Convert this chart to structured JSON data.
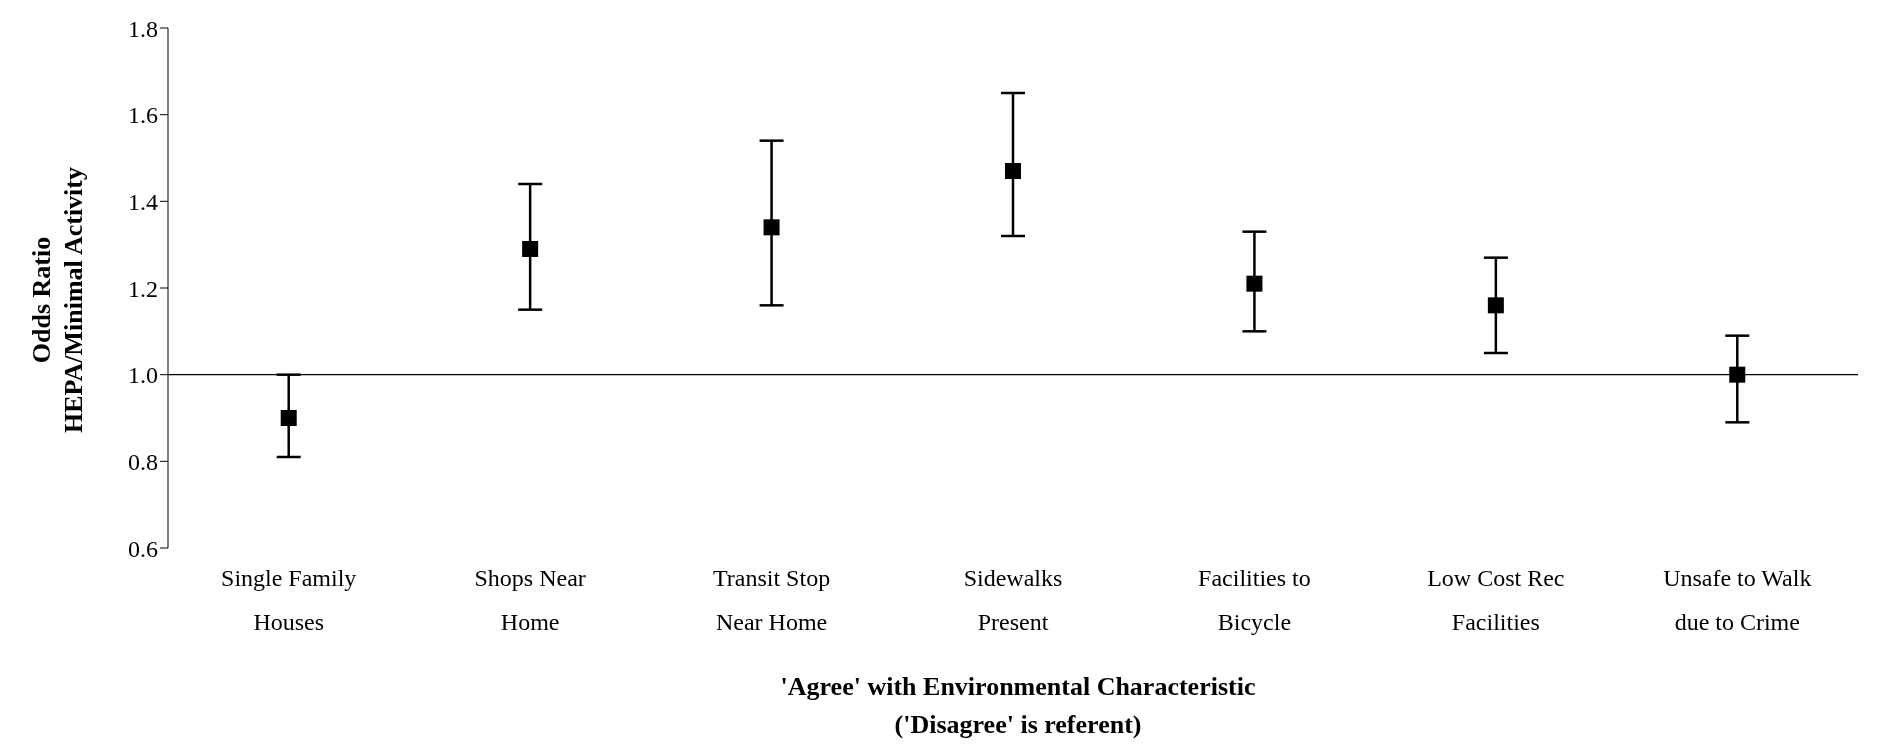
{
  "chart_data": {
    "type": "scatter",
    "xlabel": "'Agree' with Environmental Characteristic\n('Disagree' is referent)",
    "ylabel": "Odds Ratio\nHEPA/Minimal Activity",
    "categories": [
      "Single Family Houses",
      "Shops Near Home",
      "Transit Stop Near Home",
      "Sidewalks Present",
      "Facilities to Bicycle",
      "Low Cost Rec Facilities",
      "Unsafe to Walk due to Crime"
    ],
    "values": [
      0.9,
      1.29,
      1.34,
      1.47,
      1.21,
      1.16,
      1.0
    ],
    "errors": [
      [
        0.81,
        1.0
      ],
      [
        1.15,
        1.44
      ],
      [
        1.16,
        1.54
      ],
      [
        1.32,
        1.65
      ],
      [
        1.1,
        1.33
      ],
      [
        1.05,
        1.27
      ],
      [
        0.89,
        1.09
      ]
    ],
    "color": "#000000",
    "marker": "square",
    "ylim": [
      0.6,
      1.8
    ],
    "yticks": [
      {
        "value": 0.6,
        "label": "0.6"
      },
      {
        "value": 0.8,
        "label": "0.8"
      },
      {
        "value": 1.0,
        "label": "1.0"
      },
      {
        "value": 1.2,
        "label": "1.2"
      },
      {
        "value": 1.4,
        "label": "1.4"
      },
      {
        "value": 1.6,
        "label": "1.6"
      },
      {
        "value": 1.8,
        "label": "1.8"
      }
    ],
    "ref_lines": [
      {
        "axis": "y",
        "value": 1.0,
        "color": "#000000"
      }
    ],
    "grid": false
  }
}
